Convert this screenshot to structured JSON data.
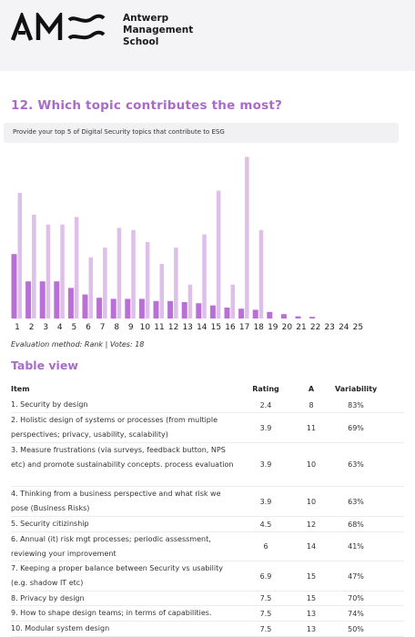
{
  "header": {
    "school_line1": "Antwerp",
    "school_line2": "Management",
    "school_line3": "School",
    "logo_icon": "ams-logo-icon"
  },
  "question": {
    "title": "12. Which topic contributes the most?",
    "subtitle": "Provide your top 5 of Digital Security topics that contribute to ESG"
  },
  "chart_data": {
    "type": "bar",
    "categories": [
      "1",
      "2",
      "3",
      "4",
      "5",
      "6",
      "7",
      "8",
      "9",
      "10",
      "11",
      "12",
      "13",
      "14",
      "15",
      "16",
      "17",
      "18",
      "19",
      "20",
      "21",
      "22",
      "23",
      "24",
      "25"
    ],
    "series": [
      {
        "values": [
          5.9,
          3.4,
          3.4,
          3.4,
          2.8,
          2.2,
          1.9,
          1.8,
          1.8,
          1.8,
          1.6,
          1.6,
          1.5,
          1.4,
          1.2,
          1.0,
          0.9,
          0.8,
          0.6,
          0.4,
          0.2,
          0.15,
          0,
          0,
          0
        ]
      },
      {
        "values": [
          11.5,
          9.5,
          8.6,
          8.6,
          9.3,
          5.6,
          6.5,
          8.3,
          8.1,
          7.0,
          5.0,
          6.5,
          3.1,
          7.7,
          11.7,
          3.1,
          14.8,
          8.1,
          0,
          0,
          0,
          0,
          0,
          0,
          0
        ]
      }
    ],
    "colors": [
      "#b96fd6",
      "#ddbfe9"
    ],
    "ylim": [
      0,
      15
    ],
    "grid": false,
    "xlabel": "",
    "ylabel": ""
  },
  "evaluation": "Evaluation method: Rank | Votes: 18",
  "table": {
    "title": "Table view",
    "headers": {
      "item": "Item",
      "rating": "Rating",
      "a": "A",
      "variability": "Variability"
    },
    "rows": [
      {
        "item": "1. Security by design",
        "rating": "2.4",
        "a": "8",
        "variability": "83%"
      },
      {
        "item": "2. Holistic design of systems or processes (from multiple perspectives; privacy, usability, scalability)",
        "rating": "3.9",
        "a": "11",
        "variability": "69%"
      },
      {
        "item": "3. Measure frustrations (via surveys, feedback button, NPS etc) and promote sustainability concepts. process evaluation",
        "rating": "3.9",
        "a": "10",
        "variability": "63%"
      },
      {
        "item": "4. Thinking from a business perspective and what risk we pose (Business Risks)",
        "rating": "3.9",
        "a": "10",
        "variability": "63%"
      },
      {
        "item": "5. Security citizinship",
        "rating": "4.5",
        "a": "12",
        "variability": "68%"
      },
      {
        "item": "6. Annual (it) risk mgt processes; periodic assessment, reviewing your improvement",
        "rating": "6",
        "a": "14",
        "variability": "41%"
      },
      {
        "item": "7. Keeping a proper balance between Security vs usability (e.g. shadow IT etc)",
        "rating": "6.9",
        "a": "15",
        "variability": "47%"
      },
      {
        "item": "8. Privacy by design",
        "rating": "7.5",
        "a": "15",
        "variability": "70%"
      },
      {
        "item": "9. How to shape design teams; in terms of capabilities.",
        "rating": "7.5",
        "a": "13",
        "variability": "74%"
      },
      {
        "item": "10. Modular system design",
        "rating": "7.5",
        "a": "13",
        "variability": "50%"
      }
    ]
  }
}
